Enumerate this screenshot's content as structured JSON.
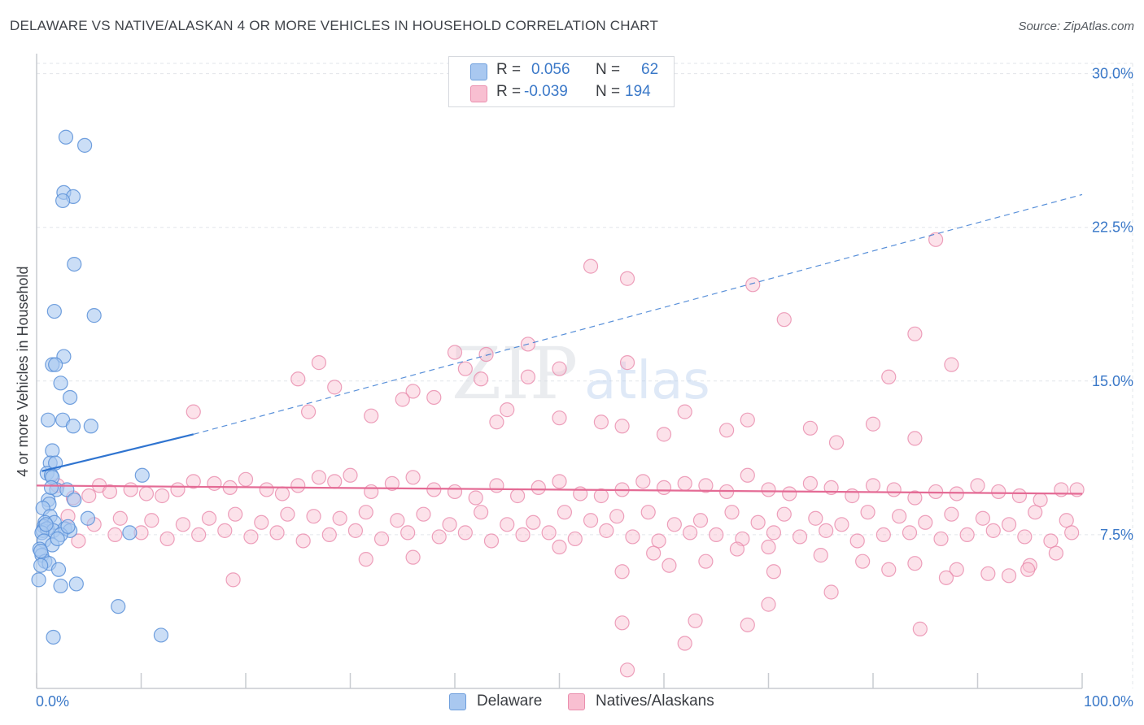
{
  "title": "DELAWARE VS NATIVE/ALASKAN 4 OR MORE VEHICLES IN HOUSEHOLD CORRELATION CHART",
  "source": "Source: ZipAtlas.com",
  "watermark": {
    "zip": "ZIP",
    "atlas": "atlas"
  },
  "legend": {
    "rows": [
      {
        "r_label": "R =",
        "r_value": "0.056",
        "n_label": "N =",
        "n_value": "62",
        "color": "#a9c8f0",
        "border": "#6f9fdc"
      },
      {
        "r_label": "R =",
        "r_value": "-0.039",
        "n_label": "N =",
        "n_value": "194",
        "color": "#f8bfd1",
        "border": "#ea8fae"
      }
    ]
  },
  "bottom_legend": {
    "delaware": "Delaware",
    "natives": "Natives/Alaskans"
  },
  "colors": {
    "blue_fill": "#a9c8f0",
    "blue_stroke": "#5b90d8",
    "blue_line": "#2f74d0",
    "pink_fill": "#f8bfd1",
    "pink_stroke": "#e88aab",
    "pink_line": "#e46b95",
    "tick_label": "#3a78c8",
    "axis": "#c9ccd1",
    "grid": "#e2e5ea"
  },
  "chart_data": {
    "type": "scatter",
    "title": "DELAWARE VS NATIVE/ALASKAN 4 OR MORE VEHICLES IN HOUSEHOLD CORRELATION CHART",
    "xlabel": "",
    "ylabel": "4 or more Vehicles in Household",
    "xlim": [
      0,
      100
    ],
    "ylim": [
      0,
      30.5
    ],
    "x_tick_labels": [
      "0.0%",
      "100.0%"
    ],
    "y_ticks": [
      7.5,
      15.0,
      22.5,
      30.0
    ],
    "y_tick_labels": [
      "7.5%",
      "15.0%",
      "22.5%",
      "30.0%"
    ],
    "grid": true,
    "series": [
      {
        "name": "Delaware",
        "r": 0.056,
        "n": 62,
        "trend": {
          "x0": 0.5,
          "y0": 10.6,
          "x1": 15,
          "y1": 12.4,
          "dash_to_x": 100,
          "dash_to_y": 24.1
        },
        "points": [
          [
            2.8,
            26.9
          ],
          [
            4.6,
            26.5
          ],
          [
            2.6,
            24.2
          ],
          [
            3.5,
            24.0
          ],
          [
            2.5,
            23.8
          ],
          [
            3.6,
            20.7
          ],
          [
            1.7,
            18.4
          ],
          [
            5.5,
            18.2
          ],
          [
            2.6,
            16.2
          ],
          [
            1.5,
            15.8
          ],
          [
            1.8,
            15.8
          ],
          [
            2.3,
            14.9
          ],
          [
            3.2,
            14.2
          ],
          [
            1.1,
            13.1
          ],
          [
            2.5,
            13.1
          ],
          [
            3.5,
            12.8
          ],
          [
            5.2,
            12.8
          ],
          [
            1.5,
            11.6
          ],
          [
            1.3,
            11.0
          ],
          [
            1.8,
            11.0
          ],
          [
            1.0,
            10.5
          ],
          [
            1.4,
            10.4
          ],
          [
            1.5,
            10.3
          ],
          [
            10.1,
            10.4
          ],
          [
            1.9,
            9.7
          ],
          [
            2.9,
            9.7
          ],
          [
            1.1,
            9.2
          ],
          [
            1.2,
            9.0
          ],
          [
            3.6,
            9.2
          ],
          [
            0.6,
            8.8
          ],
          [
            1.3,
            8.4
          ],
          [
            0.8,
            8.1
          ],
          [
            1.7,
            8.1
          ],
          [
            4.9,
            8.3
          ],
          [
            0.7,
            7.9
          ],
          [
            0.6,
            7.7
          ],
          [
            1.0,
            7.8
          ],
          [
            1.6,
            7.7
          ],
          [
            2.7,
            7.8
          ],
          [
            3.2,
            7.7
          ],
          [
            0.5,
            7.6
          ],
          [
            2.3,
            7.5
          ],
          [
            8.9,
            7.6
          ],
          [
            0.7,
            7.2
          ],
          [
            1.5,
            7.0
          ],
          [
            0.3,
            6.8
          ],
          [
            0.5,
            6.5
          ],
          [
            0.8,
            6.2
          ],
          [
            1.2,
            6.1
          ],
          [
            0.4,
            6.0
          ],
          [
            2.1,
            5.8
          ],
          [
            0.2,
            5.3
          ],
          [
            2.3,
            5.0
          ],
          [
            3.8,
            5.1
          ],
          [
            7.8,
            4.0
          ],
          [
            1.6,
            2.5
          ],
          [
            11.9,
            2.6
          ],
          [
            0.4,
            6.7
          ],
          [
            2.0,
            7.3
          ],
          [
            0.9,
            8.0
          ],
          [
            3.0,
            7.9
          ],
          [
            1.4,
            9.8
          ]
        ]
      },
      {
        "name": "Natives/Alaskans",
        "r": -0.039,
        "n": 194,
        "trend": {
          "x0": 0,
          "y0": 9.9,
          "x1": 100,
          "y1": 9.5
        }
      }
    ]
  }
}
